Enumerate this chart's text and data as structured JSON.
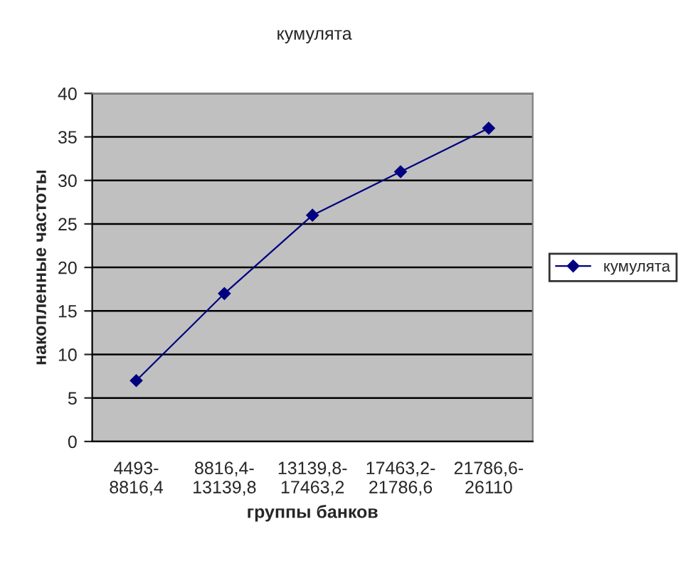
{
  "chart_data": {
    "type": "line",
    "title": "кумулята",
    "xlabel": "группы банков",
    "ylabel": "накопленные частоты",
    "categories": [
      "4493-\n8816,4",
      "8816,4-\n13139,8",
      "13139,8-\n17463,2",
      "17463,2-\n21786,6",
      "21786,6-\n26110"
    ],
    "series": [
      {
        "name": "кумулята",
        "color": "#000080",
        "values": [
          7,
          17,
          26,
          31,
          36
        ]
      }
    ],
    "ylim": [
      0,
      40
    ],
    "yticks": [
      0,
      5,
      10,
      15,
      20,
      25,
      30,
      35,
      40
    ],
    "grid": "y",
    "legend": "right",
    "marker": "diamond",
    "line_style": "solid"
  }
}
